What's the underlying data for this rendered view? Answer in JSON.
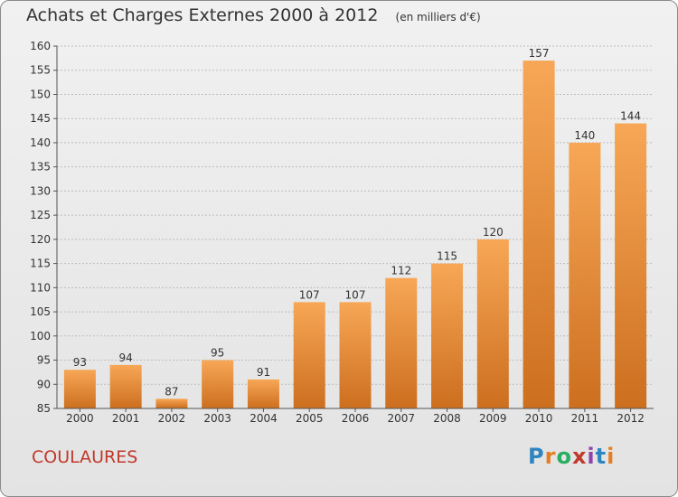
{
  "page": {
    "title": "Achats et Charges Externes 2000 à 2012",
    "unit": "(en milliers d'€)",
    "commune": "COULAURES",
    "logo_text": "Proxiti",
    "logo_colors": [
      "#2e86c1",
      "#e67e22",
      "#27ae60",
      "#c0392b",
      "#8e44ad",
      "#2e86c1",
      "#e67e22"
    ]
  },
  "colors": {
    "bar_light": "#f7a756",
    "bar_dark": "#cc6f1f",
    "grid": "#bdbdbd",
    "commune": "#c0392b"
  },
  "chart_data": {
    "type": "bar",
    "title": "Achats et Charges Externes 2000 à 2012",
    "xlabel": "",
    "ylabel": "",
    "categories": [
      "2000",
      "2001",
      "2002",
      "2003",
      "2004",
      "2005",
      "2006",
      "2007",
      "2008",
      "2009",
      "2010",
      "2011",
      "2012"
    ],
    "values": [
      93,
      94,
      87,
      95,
      91,
      107,
      107,
      112,
      115,
      120,
      157,
      140,
      144
    ],
    "ylim": [
      85,
      160
    ],
    "yticks": [
      85,
      90,
      95,
      100,
      105,
      110,
      115,
      120,
      125,
      130,
      135,
      140,
      145,
      150,
      155,
      160
    ],
    "grid": true
  }
}
